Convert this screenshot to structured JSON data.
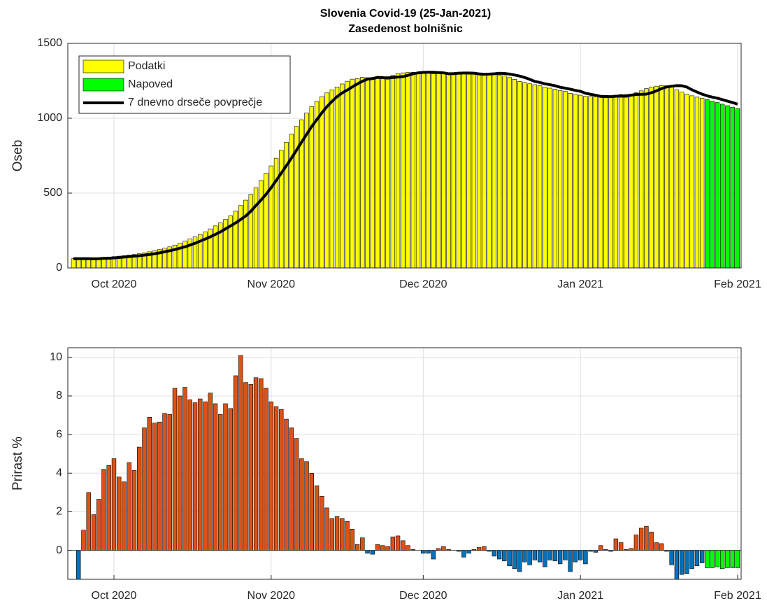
{
  "chart_data": [
    {
      "type": "bar",
      "title": "Slovenia Covid-19 (25-Jan-2021)",
      "subtitle": "Zasedenost bolnišnic",
      "ylabel": "Oseb",
      "xlim": [
        -1.1,
        131.7
      ],
      "xticks": [
        {
          "value": 8,
          "label": "Oct 2020"
        },
        {
          "value": 39,
          "label": "Nov 2020"
        },
        {
          "value": 69,
          "label": "Dec 2020"
        },
        {
          "value": 100,
          "label": "Jan 2021"
        },
        {
          "value": 131,
          "label": "Feb 2021"
        }
      ],
      "ylim": [
        0,
        1500
      ],
      "yticks": [
        0,
        500,
        1000,
        1500
      ],
      "grid": true,
      "legend": "upper left",
      "series": [
        {
          "name": "Podatki",
          "type": "bar",
          "color": "#ffff00",
          "values": [
            62,
            61,
            62,
            64,
            65,
            67,
            70,
            73,
            76,
            79,
            82,
            86,
            90,
            95,
            101,
            108,
            115,
            123,
            132,
            141,
            153,
            165,
            179,
            193,
            208,
            224,
            241,
            261,
            281,
            301,
            324,
            348,
            379,
            417,
            453,
            492,
            536,
            584,
            633,
            682,
            733,
            786,
            840,
            893,
            945,
            990,
            1036,
            1077,
            1113,
            1144,
            1169,
            1188,
            1209,
            1229,
            1247,
            1261,
            1265,
            1273,
            1271,
            1268,
            1272,
            1275,
            1278,
            1287,
            1297,
            1303,
            1306,
            1307,
            1307,
            1305,
            1303,
            1297,
            1298,
            1301,
            1302,
            1302,
            1301,
            1296,
            1294,
            1295,
            1297,
            1300,
            1299,
            1295,
            1289,
            1282,
            1272,
            1260,
            1246,
            1239,
            1230,
            1224,
            1217,
            1207,
            1201,
            1194,
            1186,
            1180,
            1167,
            1160,
            1154,
            1146,
            1145,
            1144,
            1147,
            1148,
            1147,
            1154,
            1159,
            1160,
            1161,
            1170,
            1183,
            1198,
            1209,
            1214,
            1218,
            1217,
            1208,
            1190,
            1175,
            1161,
            1150,
            1141,
            1134,
            null,
            null,
            null,
            null,
            null,
            null,
            null
          ]
        },
        {
          "name": "Napoved",
          "type": "bar",
          "color": "#00ff00",
          "values": [
            null,
            null,
            null,
            null,
            null,
            null,
            null,
            null,
            null,
            null,
            null,
            null,
            null,
            null,
            null,
            null,
            null,
            null,
            null,
            null,
            null,
            null,
            null,
            null,
            null,
            null,
            null,
            null,
            null,
            null,
            null,
            null,
            null,
            null,
            null,
            null,
            null,
            null,
            null,
            null,
            null,
            null,
            null,
            null,
            null,
            null,
            null,
            null,
            null,
            null,
            null,
            null,
            null,
            null,
            null,
            null,
            null,
            null,
            null,
            null,
            null,
            null,
            null,
            null,
            null,
            null,
            null,
            null,
            null,
            null,
            null,
            null,
            null,
            null,
            null,
            null,
            null,
            null,
            null,
            null,
            null,
            null,
            null,
            null,
            null,
            null,
            null,
            null,
            null,
            null,
            null,
            null,
            null,
            null,
            null,
            null,
            null,
            null,
            null,
            null,
            null,
            null,
            null,
            null,
            null,
            null,
            null,
            null,
            null,
            null,
            null,
            null,
            null,
            null,
            null,
            null,
            null,
            null,
            null,
            null,
            null,
            null,
            null,
            null,
            null,
            1124,
            1114,
            1105,
            1094,
            1084,
            1074,
            1064
          ]
        },
        {
          "name": "7 dnevno drseče povprečje",
          "type": "line",
          "color": "#000000",
          "values": [
            62,
            62,
            62,
            62,
            61,
            62,
            64,
            65,
            67,
            70,
            73,
            76,
            79,
            82,
            86,
            90,
            95,
            101,
            108,
            115,
            123,
            132,
            141,
            153,
            165,
            179,
            193,
            208,
            224,
            241,
            261,
            281,
            301,
            324,
            348,
            379,
            417,
            453,
            492,
            536,
            584,
            633,
            682,
            733,
            786,
            840,
            893,
            945,
            990,
            1036,
            1077,
            1113,
            1144,
            1169,
            1188,
            1209,
            1229,
            1247,
            1261,
            1265,
            1273,
            1271,
            1268,
            1272,
            1275,
            1278,
            1287,
            1297,
            1303,
            1306,
            1307,
            1307,
            1305,
            1303,
            1297,
            1298,
            1301,
            1302,
            1302,
            1301,
            1296,
            1294,
            1295,
            1297,
            1300,
            1299,
            1295,
            1289,
            1282,
            1272,
            1260,
            1246,
            1239,
            1230,
            1224,
            1217,
            1207,
            1201,
            1194,
            1186,
            1180,
            1167,
            1160,
            1154,
            1146,
            1145,
            1144,
            1147,
            1148,
            1147,
            1154,
            1159,
            1160,
            1161,
            1170,
            1183,
            1198,
            1209,
            1214,
            1218,
            1217,
            1208,
            1190,
            1175,
            1161,
            1150,
            1141,
            1134,
            1124,
            1114,
            1105,
            1094
          ]
        }
      ]
    },
    {
      "type": "bar",
      "ylabel": "Prirast %",
      "xlim": [
        -2.1,
        130.7
      ],
      "xticks": [
        {
          "value": 7,
          "label": "Oct 2020"
        },
        {
          "value": 38,
          "label": "Nov 2020"
        },
        {
          "value": 68,
          "label": "Dec 2020"
        },
        {
          "value": 99,
          "label": "Jan 2021"
        },
        {
          "value": 130,
          "label": "Feb 2021"
        }
      ],
      "ylim": [
        -1.5,
        10.5
      ],
      "yticks": [
        0,
        2,
        4,
        6,
        8,
        10
      ],
      "grid": true,
      "series": [
        {
          "type": "bar",
          "color": "#d95319",
          "negative_color": "#0072bd",
          "values": [
            -1.5,
            1.05,
            3.0,
            1.85,
            2.65,
            4.2,
            4.4,
            4.75,
            3.8,
            3.55,
            4.55,
            4.15,
            5.35,
            6.35,
            6.9,
            6.6,
            6.65,
            7.1,
            7.05,
            8.4,
            8.0,
            8.45,
            7.8,
            7.65,
            7.85,
            7.7,
            8.15,
            7.6,
            7.05,
            7.6,
            7.35,
            9.05,
            10.1,
            8.7,
            8.6,
            8.95,
            8.9,
            8.4,
            7.7,
            7.45,
            7.3,
            6.8,
            6.35,
            5.8,
            4.75,
            4.6,
            4.0,
            3.35,
            2.8,
            2.2,
            1.65,
            1.75,
            1.65,
            1.5,
            1.1,
            0.3,
            0.65,
            -0.15,
            -0.2,
            0.3,
            0.25,
            0.2,
            0.7,
            0.75,
            0.5,
            0.25,
            0.05,
            0,
            -0.15,
            -0.15,
            -0.45,
            0.1,
            0.2,
            0.05,
            0,
            -0.05,
            -0.35,
            -0.15,
            0.05,
            0.15,
            0.2,
            -0.05,
            -0.3,
            -0.45,
            -0.55,
            -0.8,
            -0.95,
            -1.1,
            -0.6,
            -0.75,
            -0.5,
            -0.6,
            -0.85,
            -0.5,
            -0.55,
            -0.7,
            -0.5,
            -1.1,
            -0.6,
            -0.5,
            -0.7,
            -0.05,
            -0.1,
            0.25,
            0.05,
            -0.05,
            0.6,
            0.4,
            0.05,
            0.1,
            0.8,
            1.15,
            1.25,
            0.95,
            0.4,
            0.35,
            -0.05,
            -0.75,
            -1.5,
            -1.25,
            -1.2,
            -0.95,
            -0.8,
            -0.65,
            null,
            null,
            null,
            null,
            null,
            null,
            null
          ]
        },
        {
          "type": "bar",
          "color": "#00ff00",
          "values": [
            null,
            null,
            null,
            null,
            null,
            null,
            null,
            null,
            null,
            null,
            null,
            null,
            null,
            null,
            null,
            null,
            null,
            null,
            null,
            null,
            null,
            null,
            null,
            null,
            null,
            null,
            null,
            null,
            null,
            null,
            null,
            null,
            null,
            null,
            null,
            null,
            null,
            null,
            null,
            null,
            null,
            null,
            null,
            null,
            null,
            null,
            null,
            null,
            null,
            null,
            null,
            null,
            null,
            null,
            null,
            null,
            null,
            null,
            null,
            null,
            null,
            null,
            null,
            null,
            null,
            null,
            null,
            null,
            null,
            null,
            null,
            null,
            null,
            null,
            null,
            null,
            null,
            null,
            null,
            null,
            null,
            null,
            null,
            null,
            null,
            null,
            null,
            null,
            null,
            null,
            null,
            null,
            null,
            null,
            null,
            null,
            null,
            null,
            null,
            null,
            null,
            null,
            null,
            null,
            null,
            null,
            null,
            null,
            null,
            null,
            null,
            null,
            null,
            null,
            null,
            null,
            null,
            null,
            null,
            null,
            null,
            null,
            null,
            null,
            -0.9,
            -0.9,
            -0.85,
            -0.95,
            -0.9,
            -0.9,
            -0.9
          ]
        }
      ]
    }
  ]
}
